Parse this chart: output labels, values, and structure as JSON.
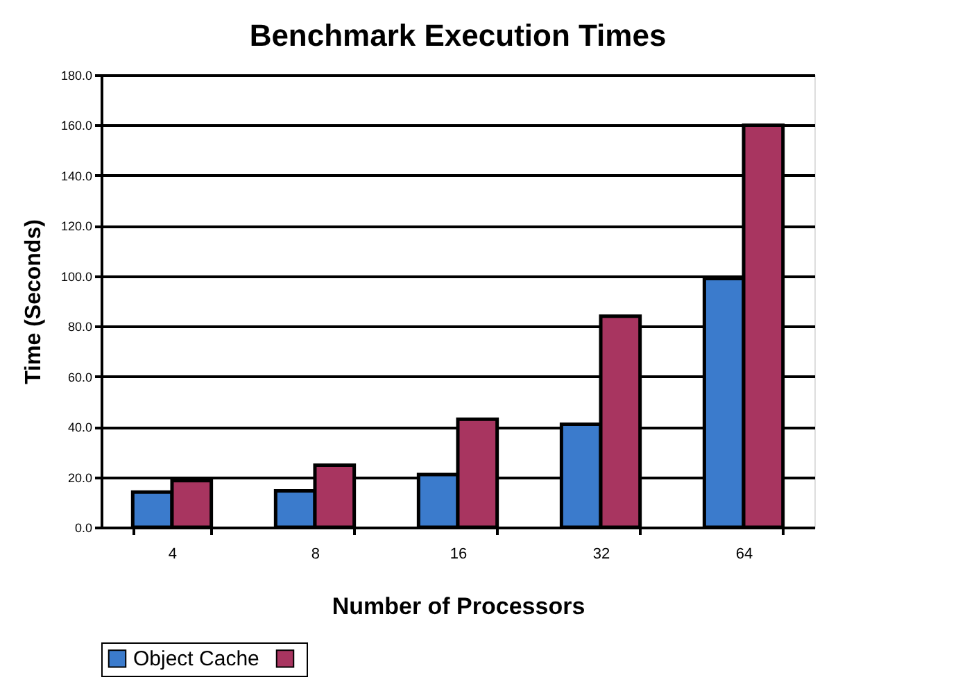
{
  "chart_data": {
    "type": "bar",
    "title": "Benchmark Execution Times",
    "xlabel": "Number of Processors",
    "ylabel": "Time (Seconds)",
    "categories": [
      "4",
      "8",
      "16",
      "32",
      "64"
    ],
    "series": [
      {
        "name": "Object Cache",
        "color": "#3b7bcc",
        "values": [
          14,
          14.5,
          21,
          41,
          99
        ]
      },
      {
        "color": "#a83560",
        "values": [
          18.6,
          24.7,
          43,
          84,
          160
        ]
      }
    ],
    "ylim": [
      0,
      180
    ],
    "yticks": [
      {
        "value": 0,
        "label": "0.0"
      },
      {
        "value": 20,
        "label": "20.0"
      },
      {
        "value": 40,
        "label": "40.0"
      },
      {
        "value": 60,
        "label": "60.0"
      },
      {
        "value": 80,
        "label": "80.0"
      },
      {
        "value": 100,
        "label": "100.0"
      },
      {
        "value": 120,
        "label": "120.0"
      },
      {
        "value": 140,
        "label": "140.0"
      },
      {
        "value": 160,
        "label": "160.0"
      },
      {
        "value": 180,
        "label": "180.0"
      }
    ],
    "grid": "y",
    "legend": "bottom"
  }
}
